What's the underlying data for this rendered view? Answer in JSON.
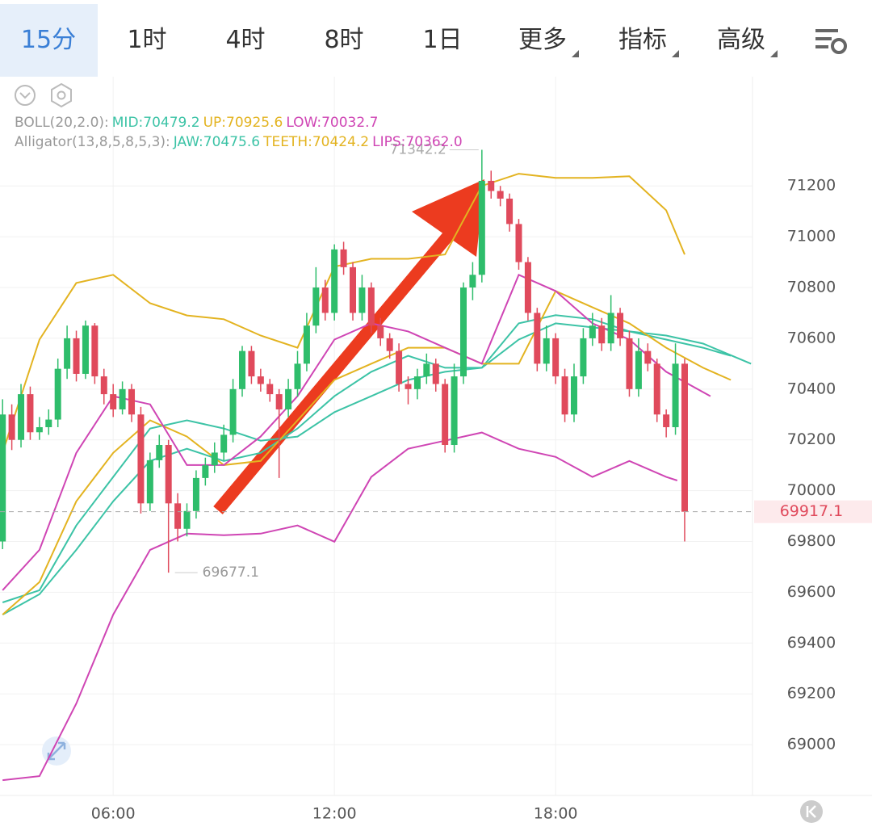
{
  "chart_data": {
    "type": "candlestick",
    "tabs": [
      "15分",
      "1时",
      "4时",
      "8时",
      "1日",
      "更多",
      "指标",
      "高级"
    ],
    "selected_tab": 0,
    "indicator_groups": [
      "BOLL(20,2.0):",
      "Alligator(13,8,5,8,5,3):"
    ],
    "x": [
      3,
      3.25,
      3.5,
      3.75,
      4,
      4.25,
      4.5,
      4.75,
      5,
      5.25,
      5.5,
      5.75,
      6,
      6.25,
      6.5,
      6.75,
      7,
      7.25,
      7.5,
      7.75,
      8,
      8.25,
      8.5,
      8.75,
      9,
      9.25,
      9.5,
      9.75,
      10,
      10.25,
      10.5,
      10.75,
      11,
      11.25,
      11.5,
      11.75,
      12,
      12.25,
      12.5,
      12.75,
      13,
      13.25,
      13.5,
      13.75,
      14,
      14.25,
      14.5,
      14.75,
      15,
      15.25,
      15.5,
      15.75,
      16,
      16.25,
      16.5,
      16.75,
      17,
      17.25,
      17.5,
      17.75,
      18,
      18.25,
      18.5,
      18.75,
      19,
      19.25,
      19.5,
      19.75,
      20,
      20.25,
      20.5,
      20.75,
      21,
      21.25,
      21.5
    ],
    "open": [
      69800,
      70300,
      70200,
      70380,
      70230,
      70250,
      70280,
      70480,
      70600,
      70460,
      70650,
      70450,
      70380,
      70320,
      70400,
      70300,
      69950,
      70120,
      70180,
      69950,
      69850,
      69920,
      70050,
      70100,
      70150,
      70220,
      70400,
      70550,
      70450,
      70420,
      70380,
      70320,
      70400,
      70500,
      70650,
      70800,
      70700,
      70950,
      70880,
      70700,
      70800,
      70650,
      70600,
      70550,
      70420,
      70400,
      70450,
      70500,
      70420,
      70180,
      70450,
      70800,
      70850,
      71220,
      71180,
      71150,
      71050,
      70900,
      70700,
      70500,
      70600,
      70450,
      70300,
      70450,
      70600,
      70650,
      70580,
      70700,
      70600,
      70400,
      70550,
      70500,
      70300,
      70250,
      70500
    ],
    "high": [
      70360,
      70340,
      70420,
      70410,
      70290,
      70320,
      70520,
      70650,
      70630,
      70670,
      70660,
      70480,
      70420,
      70430,
      70420,
      70330,
      70150,
      70220,
      70200,
      69990,
      69950,
      70080,
      70130,
      70190,
      70260,
      70440,
      70570,
      70570,
      70480,
      70440,
      70400,
      70440,
      70550,
      70700,
      70880,
      70830,
      70970,
      70980,
      70900,
      70850,
      70820,
      70680,
      70620,
      70580,
      70450,
      70480,
      70540,
      70520,
      70440,
      70500,
      70820,
      70900,
      71342.2,
      71260,
      71200,
      71170,
      71070,
      70920,
      70720,
      70650,
      70620,
      70480,
      70500,
      70640,
      70700,
      70680,
      70770,
      70720,
      70630,
      70600,
      70580,
      70520,
      70320,
      70580,
      70520
    ],
    "low": [
      69770,
      70160,
      70170,
      70200,
      70200,
      70220,
      70250,
      70440,
      70430,
      70440,
      70420,
      70340,
      70290,
      70300,
      70270,
      69910,
      69920,
      70090,
      69677.1,
      69800,
      69820,
      69890,
      70020,
      70070,
      70120,
      70190,
      70370,
      70420,
      70390,
      70350,
      70050,
      70290,
      70370,
      70470,
      70620,
      70670,
      70670,
      70850,
      70670,
      70670,
      70620,
      70570,
      70520,
      70390,
      70340,
      70360,
      70420,
      70390,
      70150,
      70150,
      70420,
      70750,
      70820,
      71150,
      71120,
      71020,
      70870,
      70670,
      70470,
      70470,
      70420,
      70270,
      70270,
      70420,
      70570,
      70550,
      70550,
      70570,
      70370,
      70370,
      70470,
      70270,
      70210,
      70220,
      69800
    ],
    "close": [
      70300,
      70200,
      70380,
      70230,
      70250,
      70280,
      70480,
      70600,
      70460,
      70650,
      70450,
      70380,
      70320,
      70400,
      70300,
      69950,
      70120,
      70180,
      69950,
      69850,
      69920,
      70050,
      70100,
      70150,
      70220,
      70400,
      70550,
      70450,
      70420,
      70380,
      70320,
      70400,
      70500,
      70650,
      70800,
      70700,
      70950,
      70880,
      70700,
      70800,
      70650,
      70600,
      70550,
      70420,
      70400,
      70450,
      70500,
      70420,
      70180,
      70450,
      70800,
      70850,
      71220,
      71180,
      71150,
      71050,
      70900,
      70700,
      70500,
      70600,
      70450,
      70300,
      70450,
      70600,
      70650,
      70580,
      70700,
      70600,
      70400,
      70550,
      70500,
      70300,
      70250,
      70500,
      69917.1
    ],
    "up_color": "#2ebd6b",
    "down_color": "#e04a5c",
    "series": [
      {
        "legend": "MID:70479.2",
        "group": 0,
        "color": "#3cc3a6",
        "x": [
          3,
          4,
          5,
          6,
          7,
          8,
          9,
          10,
          11,
          12,
          13,
          14,
          15,
          16,
          17,
          18,
          19,
          20,
          21,
          22,
          23.3
        ],
        "values": [
          69560,
          69608,
          69863,
          70054,
          70245,
          70277,
          70245,
          70197,
          70213,
          70309,
          70372,
          70436,
          70468,
          70484,
          70595,
          70659,
          70643,
          70627,
          70611,
          70579,
          70500
        ]
      },
      {
        "legend": "UP:70925.6",
        "group": 0,
        "color": "#e3b320",
        "x": [
          3,
          4,
          5,
          6,
          7,
          8,
          9,
          10,
          11,
          12,
          13,
          14,
          15,
          16,
          17,
          18,
          19,
          20,
          21,
          21.5
        ],
        "values": [
          70150,
          70595,
          70818,
          70850,
          70738,
          70690,
          70675,
          70611,
          70563,
          70882,
          70913,
          70913,
          70930,
          71200,
          71248,
          71232,
          71232,
          71238,
          71104,
          70930
        ]
      },
      {
        "legend": "LOW:70032.7",
        "group": 0,
        "color": "#cf45b4",
        "x": [
          3,
          4,
          5,
          6,
          7,
          8,
          9,
          10,
          11,
          12,
          13,
          14,
          15,
          16,
          17,
          18,
          19,
          20,
          21,
          21.3
        ],
        "values": [
          68860,
          68876,
          69162,
          69512,
          69767,
          69831,
          69825,
          69831,
          69863,
          69799,
          70054,
          70165,
          70197,
          70229,
          70165,
          70133,
          70054,
          70117,
          70054,
          70040
        ]
      },
      {
        "legend": "JAW:70475.6",
        "group": 1,
        "color": "#3cc3a6",
        "x": [
          3,
          4,
          5,
          6,
          7,
          8,
          9,
          10,
          11,
          12,
          13,
          14,
          15,
          16,
          17,
          18,
          19,
          20,
          21,
          22,
          22.75
        ],
        "values": [
          69512,
          69592,
          69767,
          69958,
          70117,
          70165,
          70117,
          70149,
          70245,
          70372,
          70468,
          70531,
          70484,
          70484,
          70659,
          70691,
          70675,
          70627,
          70595,
          70563,
          70531
        ]
      },
      {
        "legend": "TEETH:70424.2",
        "group": 1,
        "color": "#e3b320",
        "x": [
          3,
          4,
          5,
          6,
          7,
          8,
          9,
          10,
          11,
          12,
          13,
          14,
          15,
          16,
          17,
          18,
          19,
          20,
          21,
          22,
          22.75
        ],
        "values": [
          69512,
          69640,
          69958,
          70149,
          70277,
          70213,
          70101,
          70117,
          70277,
          70436,
          70500,
          70563,
          70563,
          70500,
          70500,
          70786,
          70722,
          70659,
          70563,
          70484,
          70436
        ]
      },
      {
        "legend": "LIPS:70362.0",
        "group": 1,
        "color": "#cf45b4",
        "x": [
          3,
          4,
          5,
          6,
          7,
          8,
          9,
          10,
          11,
          12,
          13,
          14,
          15,
          16,
          17,
          18,
          19,
          20,
          21,
          22.2
        ],
        "values": [
          69608,
          69767,
          70149,
          70372,
          70340,
          70101,
          70101,
          70213,
          70372,
          70595,
          70659,
          70627,
          70563,
          70500,
          70850,
          70786,
          70659,
          70595,
          70468,
          70372
        ]
      }
    ],
    "xlim": [
      2.93,
      23.34
    ],
    "xticks": [
      {
        "value": 6,
        "label": "06:00"
      },
      {
        "value": 12,
        "label": "12:00"
      },
      {
        "value": 18,
        "label": "18:00"
      }
    ],
    "ylim": [
      68800,
      71630
    ],
    "yticks": [
      69000,
      69200,
      69400,
      69600,
      69800,
      70000,
      70200,
      70400,
      70600,
      70800,
      71000,
      71200
    ],
    "grid": true
  }
}
